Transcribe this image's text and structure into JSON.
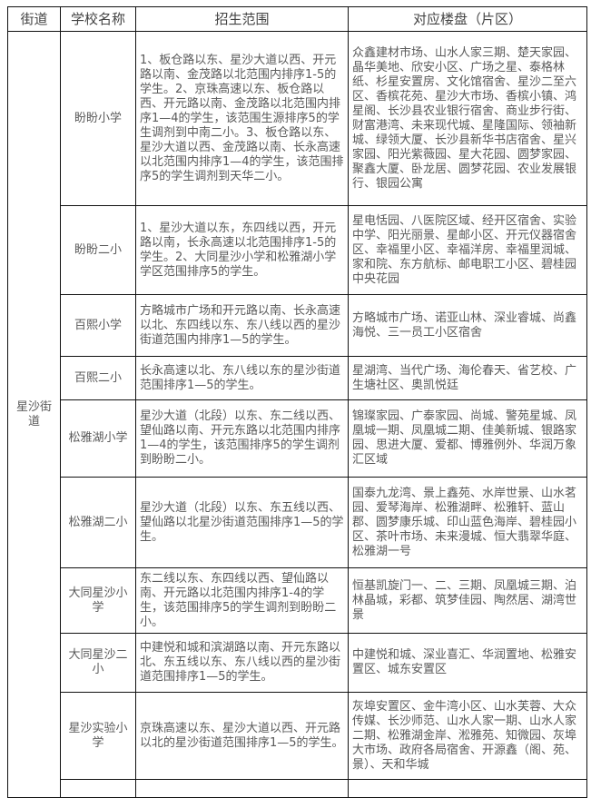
{
  "headers": [
    "街道",
    "学校名称",
    "招生范围",
    "对应楼盘（片区）"
  ],
  "street": "星沙街道",
  "rows": [
    {
      "school": "盼盼小学",
      "scope": "1、板仓路以东、星沙大道以西、开元路以南、金茂路以北范围内排序1-5的学生。2、京珠高速以东、板仓路以西、开元路以南、金茂路以北范围内排序1—4的学生，该范围生源排序5的学生调剂到中南二小。3、板仓路以东、星沙大道以西、金茂路以南、长永高速以北范围内排序1—4的学生，该范围排序5的学生调剂到天华二小。",
      "estates": "众鑫建材市场、山水人家三期、楚天家园、晶华美地、欣安小区、广场之星、泰格林纸、杉星安置房、文化馆宿舍、星沙二至六区、香槟花苑、星沙大市场、香槟小镇、鸿星阁、长沙县农业银行宿舍、商业步行街、财富港湾、未来现代城、星隆国际、领袖新城、绿领大厦、长沙县新华书店宿舍、星兴家园、阳光紫薇园、星大花园、圆梦家园、聚鑫大厦、卧龙居、圆梦花园、农业发展银行、银园公寓"
    },
    {
      "school": "盼盼二小",
      "scope": "1、星沙大道以东，东四线以西，开元路以南，长永高速以北范围排序1-5的学生。2、大同星沙小学和松雅湖小学学区范围排序5的学生。",
      "estates": "星电恬园、八医院区域、经开区宿舍、实验中学、阳光丽景、星邮小区、开元仪器宿舍区、幸福里小区、幸福洋房、幸福里润城、家和院、东方航标、邮电职工小区、碧桂园中央花园"
    },
    {
      "school": "百熙小学",
      "scope": "方略城市广场和开元路以南、长永高速以北、东四线以东、东八线以西的星沙街道范围内排序1—5的学生。",
      "estates": "方略城市广场、诺亚山林、深业睿城、尚鑫海悦、三一员工小区宿舍"
    },
    {
      "school": "百熙二小",
      "scope": "长永高速以北、东八线以东的星沙街道范围排序1—5的学生。",
      "estates": "星湖湾、当代广场、海伦春天、省艺校、广生塘社区、奥凯悦廷"
    },
    {
      "school": "松雅湖小学",
      "scope": "星沙大道（北段）以东、东二线以西、望仙路以南、开元东路以北范围内排序1—4的学生，该范围排序5的学生调剂到盼盼二小。",
      "estates": "锦璨家园、广泰家园、尚城、警苑星城、凤凰城一期、凤凰城二期、佳美新城、银路家园、思进大厦、爱都、博雅例外、华润万象汇区域"
    },
    {
      "school": "松雅湖二小",
      "scope": "星沙大道（北段）以东、东五线以西、望仙路以北星沙街道范围排序1—5的学生。",
      "estates": "国泰九龙湾、景上鑫苑、水岸世景、山水茗园、爱琴海岸、松雅湖畔、松雅轩、蓝山郡、圆梦康乐城、印山蓝色海岸、碧桂园小区、茶叶市场、未来漫城、恒大翡翠华庭、松雅湖一号"
    },
    {
      "school": "大同星沙小学",
      "scope": "东二线以东、东四线以西、望仙路以南、开元路以北范围内排序1-4的学生，该范围排序5的学生调剂到盼盼二小。",
      "estates": "恒基凯旋门一、二、三期、凤凰城三期、泊林晶城，彩都、筑梦佳园、陶然居、湖湾世景"
    },
    {
      "school": "大同星沙二小",
      "scope": "中建悦和城和滨湖路以南、开元东路以北、东五线以东、东八线以西的星沙街道范围排序1—5的学生。",
      "estates": "中建悦和城、深业喜汇、华润置地、松雅安置区、城东安置区"
    },
    {
      "school": "星沙实验小学",
      "scope": "京珠高速以东、星沙大道以西、开元路以北的星沙街道范围排序1—5的学生。",
      "estates": "灰埠安置区、金牛湾小区、山水芙蓉、大众传媒、长沙师范、山水人家一期、山水人家二期、松雅湖金岸、淞雅苑、知微园、灰埠大市场、政府各局宿舍、开源鑫（阁、苑、景）、天和华城"
    }
  ]
}
